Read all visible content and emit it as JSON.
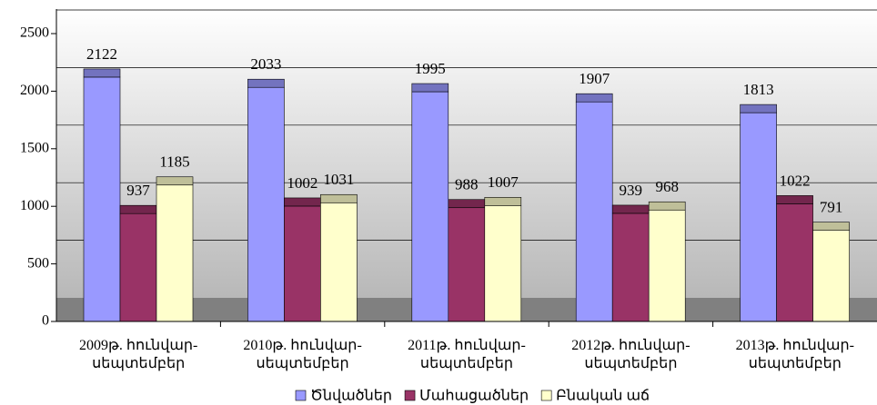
{
  "chart_data": {
    "type": "bar3d",
    "categories": [
      "2009թ. հունվար-\nսեպտեմբեր",
      "2010թ. հունվար-\nսեպտեմբեր",
      "2011թ. հունվար-\nսեպտեմբեր",
      "2012թ. հունվար-\nսեպտեմբեր",
      "2013թ. հունվար-\nսեպտեմբեր"
    ],
    "series": [
      {
        "name": "Ծնվածներ",
        "color": "#9999ff",
        "values": [
          2122,
          2033,
          1995,
          1907,
          1813
        ]
      },
      {
        "name": "Մահացածներ",
        "color": "#993366",
        "values": [
          937,
          1002,
          988,
          939,
          1022
        ]
      },
      {
        "name": "Բնական աճ",
        "color": "#ffffcc",
        "values": [
          1185,
          1031,
          1007,
          968,
          791
        ]
      }
    ],
    "ylim": [
      0,
      2500
    ],
    "yticks": [
      0,
      500,
      1000,
      1500,
      2000,
      2500
    ],
    "grid": true,
    "legend": "bottom"
  }
}
